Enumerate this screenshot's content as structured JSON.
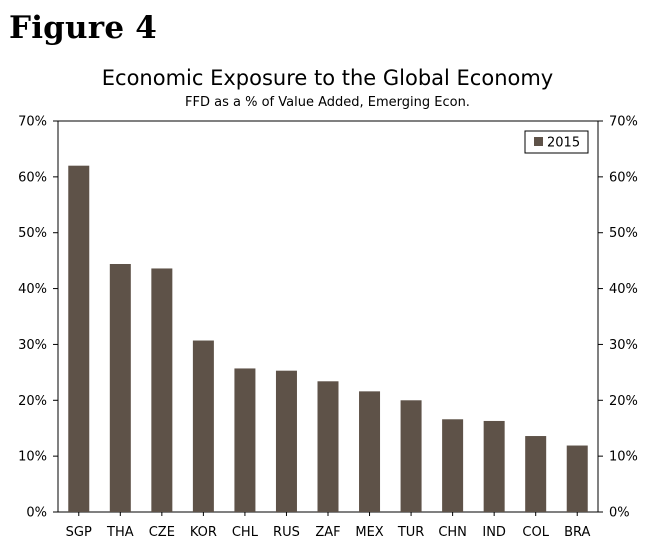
{
  "figure_label": "Figure 4",
  "chart_data": {
    "type": "bar",
    "title": "Economic Exposure to the Global Economy",
    "subtitle": "FFD as a % of Value Added, Emerging Econ.",
    "xlabel": "",
    "ylabel": "",
    "categories": [
      "SGP",
      "THA",
      "CZE",
      "KOR",
      "CHL",
      "RUS",
      "ZAF",
      "MEX",
      "TUR",
      "CHN",
      "IND",
      "COL",
      "BRA"
    ],
    "series": [
      {
        "name": "2015",
        "values": [
          62.0,
          44.4,
          43.6,
          30.7,
          25.7,
          25.3,
          23.4,
          21.6,
          20.0,
          16.6,
          16.3,
          13.6,
          11.9
        ],
        "color": "#5e5248"
      }
    ],
    "ylim": [
      0,
      70
    ],
    "yticks": [
      0,
      10,
      20,
      30,
      40,
      50,
      60,
      70
    ],
    "ytick_labels": [
      "0%",
      "10%",
      "20%",
      "30%",
      "40%",
      "50%",
      "60%",
      "70%"
    ],
    "secondary_axis_right": true,
    "grid": false,
    "legend_position": "top-right"
  }
}
